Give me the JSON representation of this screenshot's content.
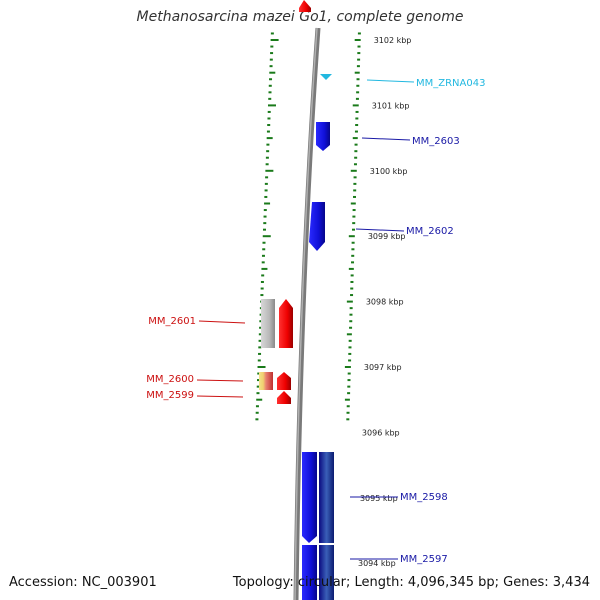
{
  "title": "Methanosarcina mazei Go1, complete genome",
  "accession": "Accession: NC_003901",
  "topology": "Topology: circular; Length: 4,096,345 bp; Genes: 3,434",
  "ruler": [
    {
      "label": "3102 kbp",
      "kbp": 3102
    },
    {
      "label": "3101 kbp",
      "kbp": 3101
    },
    {
      "label": "3100 kbp",
      "kbp": 3100
    },
    {
      "label": "3099 kbp",
      "kbp": 3099
    },
    {
      "label": "3098 kbp",
      "kbp": 3098
    },
    {
      "label": "3097 kbp",
      "kbp": 3097
    },
    {
      "label": "3096 kbp",
      "kbp": 3096
    },
    {
      "label": "3095 kbp",
      "kbp": 3095
    },
    {
      "label": "3094 kbp",
      "kbp": 3094
    }
  ],
  "gene_labels": [
    {
      "name": "MM_ZRNA043",
      "color": "#22b8e0"
    },
    {
      "name": "MM_2603",
      "color": "#1a1aa6"
    },
    {
      "name": "MM_2602",
      "color": "#1a1aa6"
    },
    {
      "name": "MM_2601",
      "color": "#cc1111"
    },
    {
      "name": "MM_2600",
      "color": "#cc1111"
    },
    {
      "name": "MM_2599",
      "color": "#cc1111"
    },
    {
      "name": "MM_2598",
      "color": "#1a1aa6"
    },
    {
      "name": "MM_2597",
      "color": "#1a1aa6"
    }
  ],
  "colors": {
    "forward_strand": "#1515e6",
    "reverse_strand": "#ee1111",
    "rna": "#22b8e0",
    "backbone": "#888888",
    "tick": "#1a7a1a"
  }
}
